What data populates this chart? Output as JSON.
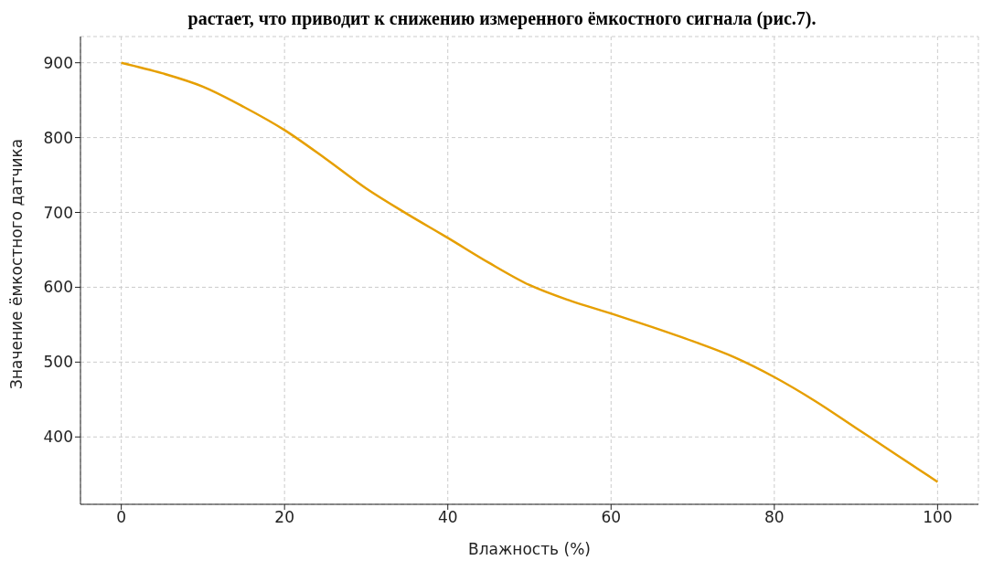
{
  "chart_data": {
    "type": "line",
    "annotations": [
      "растает, что приводит к снижению измеренного ёмкостного сигнала (рис.7)."
    ],
    "xlabel": "Влажность (%)",
    "ylabel": "Значение ёмкостного датчика",
    "x": [
      0,
      5,
      10,
      15,
      20,
      25,
      30,
      35,
      40,
      45,
      50,
      55,
      60,
      65,
      70,
      75,
      80,
      85,
      90,
      95,
      100
    ],
    "series": [
      {
        "color": "#e69f00",
        "values": [
          900,
          886,
          868,
          841,
          810,
          772,
          732,
          698,
          666,
          633,
          603,
          582,
          565,
          547,
          528,
          507,
          480,
          448,
          412,
          376,
          340
        ]
      }
    ],
    "xlim": [
      -5,
      105
    ],
    "xticks": [
      0,
      20,
      40,
      60,
      80,
      100
    ],
    "ylim": [
      310,
      935
    ],
    "yticks": [
      400,
      500,
      600,
      700,
      800,
      900
    ],
    "grid": true,
    "legend": false,
    "marker": "none",
    "line_style": "solid"
  }
}
